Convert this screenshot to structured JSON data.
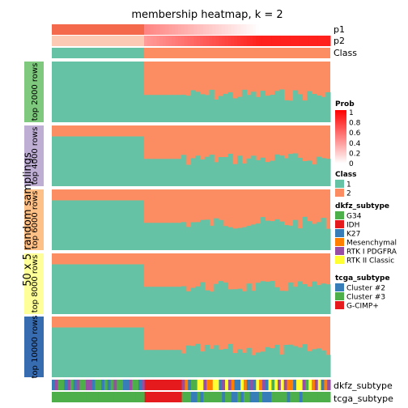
{
  "chart_data": {
    "type": "heatmap",
    "title": "membership heatmap, k = 2",
    "ylabel": "50 x 5 random samplings",
    "top_annotations": [
      "p1",
      "p2",
      "Class"
    ],
    "bottom_annotations": [
      "dkfz_subtype",
      "tcga_subtype"
    ],
    "row_groups": [
      {
        "label": "top 2000 rows",
        "color": "#7fc97f"
      },
      {
        "label": "top 4000 rows",
        "color": "#beaed4"
      },
      {
        "label": "top 6000 rows",
        "color": "#fdc086"
      },
      {
        "label": "top 8000 rows",
        "color": "#ffff99"
      },
      {
        "label": "top 10000 rows",
        "color": "#386cb0"
      }
    ],
    "class_colors": {
      "1": "#66c2a5",
      "2": "#fc8d62"
    },
    "prob_legend": {
      "title": "Prob",
      "ticks": [
        "1",
        "0.8",
        "0.6",
        "0.4",
        "0.2",
        "0"
      ]
    },
    "class_legend": {
      "title": "Class",
      "entries": [
        {
          "label": "1",
          "color": "#66c2a5"
        },
        {
          "label": "2",
          "color": "#fc8d62"
        }
      ]
    },
    "dkfz_legend": {
      "title": "dkfz_subtype",
      "entries": [
        {
          "label": "G34",
          "color": "#4daf4a"
        },
        {
          "label": "IDH",
          "color": "#e41a1c"
        },
        {
          "label": "K27",
          "color": "#377eb8"
        },
        {
          "label": "Mesenchymal",
          "color": "#ff7f00"
        },
        {
          "label": "RTK I PDGFRA",
          "color": "#984ea3"
        },
        {
          "label": "RTK II Classic",
          "color": "#ffff33"
        }
      ]
    },
    "tcga_legend": {
      "title": "tcga_subtype",
      "entries": [
        {
          "label": "Cluster #2",
          "color": "#377eb8"
        },
        {
          "label": "Cluster #3",
          "color": "#4daf4a"
        },
        {
          "label": "G-CIMP+",
          "color": "#e41a1c"
        }
      ]
    }
  }
}
